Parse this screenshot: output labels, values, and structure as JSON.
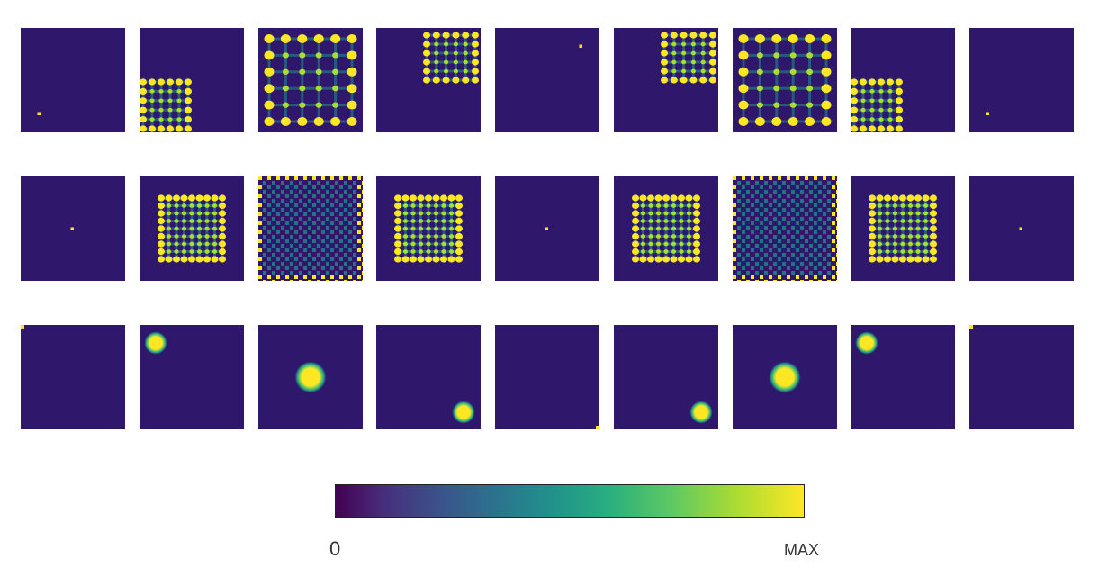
{
  "colorbar": {
    "min_label": "0",
    "max_label": "MAX",
    "colormap": [
      "#440154",
      "#472d7b",
      "#3b528b",
      "#2c728e",
      "#21918c",
      "#28ae80",
      "#5ec962",
      "#addc30",
      "#fde725"
    ]
  },
  "colors": {
    "background_low": "#2f176c",
    "high": "#fde725",
    "mid": "#21918c"
  },
  "rows": [
    {
      "name": "row-1",
      "tiles": [
        {
          "kind": "dot",
          "level": 1.0
        },
        {
          "kind": "lattice-corner",
          "level": 1.0
        },
        {
          "kind": "lattice-full",
          "level": 1.0
        },
        {
          "kind": "lattice-corner",
          "level": 1.0
        },
        {
          "kind": "dot",
          "level": 1.0
        },
        {
          "kind": "lattice-corner",
          "level": 1.0
        },
        {
          "kind": "lattice-full",
          "level": 1.0
        },
        {
          "kind": "lattice-corner",
          "level": 1.0
        },
        {
          "kind": "dot",
          "level": 1.0
        }
      ]
    },
    {
      "name": "row-2",
      "tiles": [
        {
          "kind": "dot",
          "level": 1.0
        },
        {
          "kind": "lattice-full",
          "level": 1.0
        },
        {
          "kind": "checker-fine",
          "level": 1.0
        },
        {
          "kind": "lattice-full",
          "level": 1.0
        },
        {
          "kind": "dot",
          "level": 1.0
        },
        {
          "kind": "lattice-full",
          "level": 1.0
        },
        {
          "kind": "checker-fine",
          "level": 1.0
        },
        {
          "kind": "lattice-full",
          "level": 1.0
        },
        {
          "kind": "dot",
          "level": 1.0
        }
      ]
    },
    {
      "name": "row-3",
      "tiles": [
        {
          "kind": "corner-pixel",
          "level": 1.0
        },
        {
          "kind": "blob",
          "level": 1.0
        },
        {
          "kind": "blob",
          "level": 1.0
        },
        {
          "kind": "blob",
          "level": 1.0
        },
        {
          "kind": "corner-pixel",
          "level": 1.0
        },
        {
          "kind": "blob",
          "level": 1.0
        },
        {
          "kind": "blob",
          "level": 1.0
        },
        {
          "kind": "blob",
          "level": 1.0
        },
        {
          "kind": "corner-pixel",
          "level": 1.0
        }
      ]
    }
  ]
}
